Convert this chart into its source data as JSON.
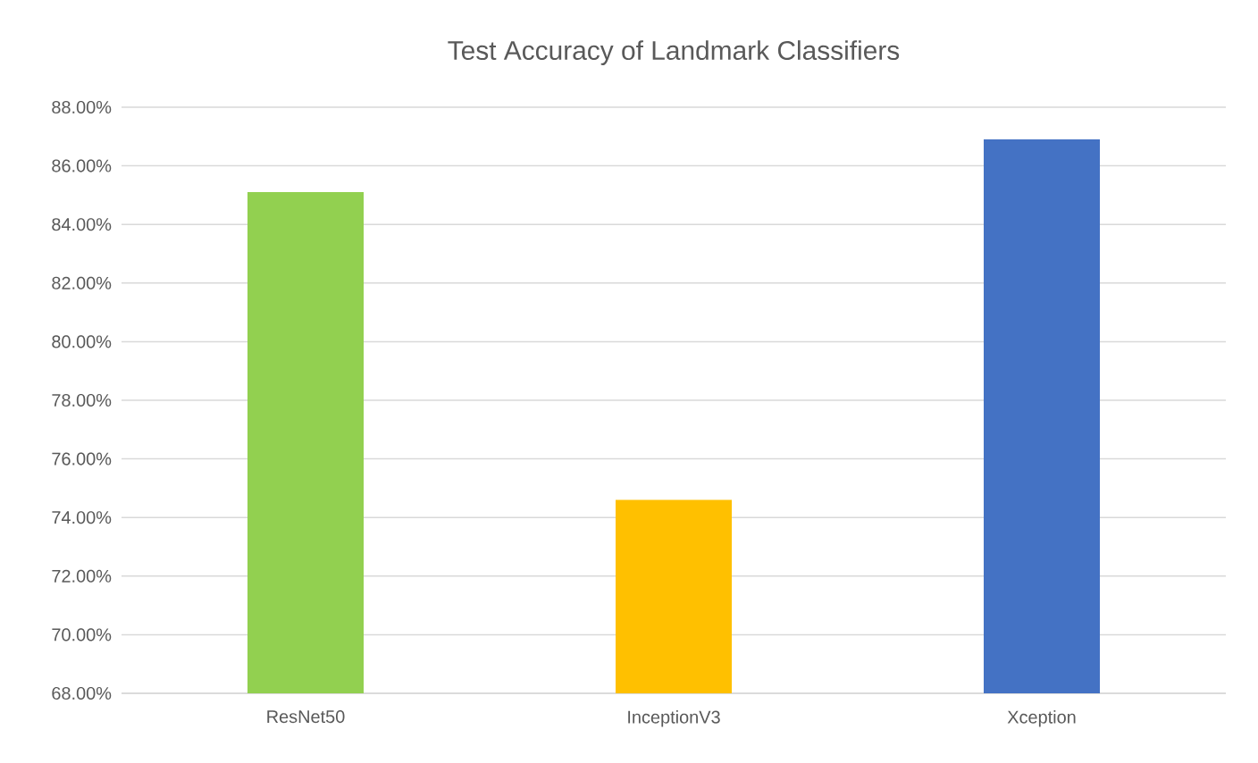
{
  "chart_data": {
    "type": "bar",
    "title": "Test Accuracy of Landmark Classifiers",
    "categories": [
      "ResNet50",
      "InceptionV3",
      "Xception"
    ],
    "values": [
      85.1,
      74.6,
      86.9
    ],
    "colors": [
      "#92d050",
      "#ffc000",
      "#4472c4"
    ],
    "ylim": [
      68,
      88
    ],
    "yticks": [
      {
        "value": 68,
        "label": "68.00%"
      },
      {
        "value": 70,
        "label": "70.00%"
      },
      {
        "value": 72,
        "label": "72.00%"
      },
      {
        "value": 74,
        "label": "74.00%"
      },
      {
        "value": 76,
        "label": "76.00%"
      },
      {
        "value": 78,
        "label": "78.00%"
      },
      {
        "value": 80,
        "label": "80.00%"
      },
      {
        "value": 82,
        "label": "82.00%"
      },
      {
        "value": 84,
        "label": "84.00%"
      },
      {
        "value": 86,
        "label": "86.00%"
      },
      {
        "value": 88,
        "label": "88.00%"
      }
    ],
    "grid": "y"
  }
}
